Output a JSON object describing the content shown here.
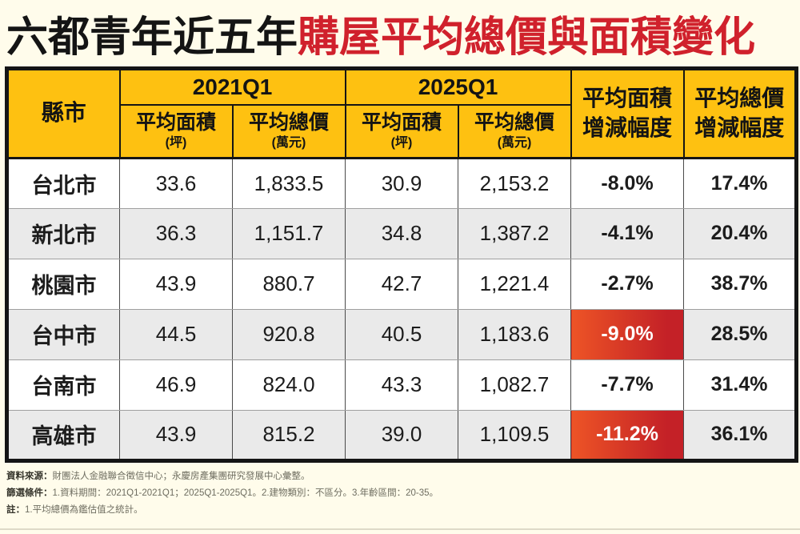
{
  "title": {
    "prefix_black": "六都青年近五年",
    "suffix_red": "購屋平均總價與面積變化"
  },
  "colors": {
    "background": "#FFFCEB",
    "header_yellow": "#FEC111",
    "title_red": "#D0212C",
    "highlight_gradient_left": "#ED5426",
    "highlight_gradient_right": "#C42127",
    "row_alt_gray": "#EAEAEA",
    "table_border": "#151515",
    "highlight_text": "#FFFFFF"
  },
  "table": {
    "header": {
      "city_label": "縣市",
      "period_2021": "2021Q1",
      "period_2025": "2025Q1",
      "avg_area_label": "平均面積",
      "avg_area_unit": "(坪)",
      "avg_price_label": "平均總價",
      "avg_price_unit": "(萬元)",
      "area_change_line1": "平均面積",
      "area_change_line2": "增減幅度",
      "price_change_line1": "平均總價",
      "price_change_line2": "增減幅度"
    },
    "rows": [
      {
        "city": "台北市",
        "area_2021": "33.6",
        "price_2021": "1,833.5",
        "area_2025": "30.9",
        "price_2025": "2,153.2",
        "area_change": "-8.0%",
        "price_change": "17.4%",
        "highlight": false
      },
      {
        "city": "新北市",
        "area_2021": "36.3",
        "price_2021": "1,151.7",
        "area_2025": "34.8",
        "price_2025": "1,387.2",
        "area_change": "-4.1%",
        "price_change": "20.4%",
        "highlight": false
      },
      {
        "city": "桃園市",
        "area_2021": "43.9",
        "price_2021": "880.7",
        "area_2025": "42.7",
        "price_2025": "1,221.4",
        "area_change": "-2.7%",
        "price_change": "38.7%",
        "highlight": false
      },
      {
        "city": "台中市",
        "area_2021": "44.5",
        "price_2021": "920.8",
        "area_2025": "40.5",
        "price_2025": "1,183.6",
        "area_change": "-9.0%",
        "price_change": "28.5%",
        "highlight": true
      },
      {
        "city": "台南市",
        "area_2021": "46.9",
        "price_2021": "824.0",
        "area_2025": "43.3",
        "price_2025": "1,082.7",
        "area_change": "-7.7%",
        "price_change": "31.4%",
        "highlight": false
      },
      {
        "city": "高雄市",
        "area_2021": "43.9",
        "price_2021": "815.2",
        "area_2025": "39.0",
        "price_2025": "1,109.5",
        "area_change": "-11.2%",
        "price_change": "36.1%",
        "highlight": true
      }
    ]
  },
  "footer": {
    "source_label": "資料來源：",
    "source_text": "財團法人金融聯合徵信中心；永慶房產集團研究發展中心彙整。",
    "filter_label": "篩選條件：",
    "filter_text": "1.資料期間：2021Q1-2021Q1；2025Q1-2025Q1。2.建物類別：不區分。3.年齡區間：20-35。",
    "note_label": "註：",
    "note_text": "1.平均總價為鑑估值之統計。"
  },
  "chart_data": {
    "type": "table",
    "title": "六都青年近五年購屋平均總價與面積變化",
    "columns": [
      "縣市",
      "2021Q1 平均面積(坪)",
      "2021Q1 平均總價(萬元)",
      "2025Q1 平均面積(坪)",
      "2025Q1 平均總價(萬元)",
      "平均面積增減幅度",
      "平均總價增減幅度"
    ],
    "rows": [
      [
        "台北市",
        33.6,
        1833.5,
        30.9,
        2153.2,
        -8.0,
        17.4
      ],
      [
        "新北市",
        36.3,
        1151.7,
        34.8,
        1387.2,
        -4.1,
        20.4
      ],
      [
        "桃園市",
        43.9,
        880.7,
        42.7,
        1221.4,
        -2.7,
        38.7
      ],
      [
        "台中市",
        44.5,
        920.8,
        40.5,
        1183.6,
        -9.0,
        28.5
      ],
      [
        "台南市",
        46.9,
        824.0,
        43.3,
        1082.7,
        -7.7,
        31.4
      ],
      [
        "高雄市",
        43.9,
        815.2,
        39.0,
        1109.5,
        -11.2,
        36.1
      ]
    ],
    "highlighted_cells": [
      [
        "台中市",
        "平均面積增減幅度"
      ],
      [
        "高雄市",
        "平均面積增減幅度"
      ]
    ],
    "units": {
      "area": "坪",
      "price": "萬元",
      "change": "%"
    }
  }
}
